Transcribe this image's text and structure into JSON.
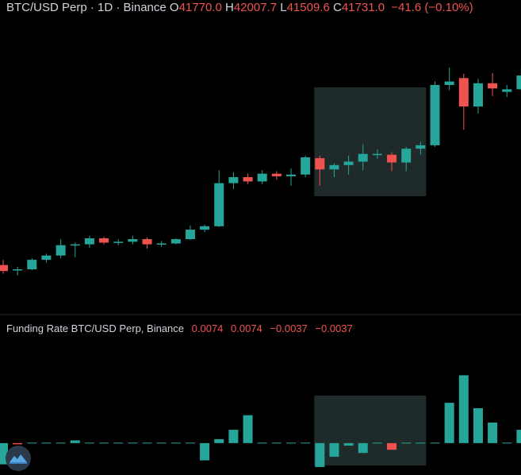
{
  "header": {
    "symbol": "BTC/USD Perp · 1D · Binance",
    "o_label": "O",
    "o_value": "41770.0",
    "h_label": "H",
    "h_value": "42007.7",
    "l_label": "L",
    "l_value": "41509.6",
    "c_label": "C",
    "c_value": "41731.0",
    "change": "−41.6 (−0.10%)"
  },
  "funding": {
    "title": "Funding Rate BTC/USD Perp, Binance",
    "values": [
      "0.0074",
      "0.0074",
      "−0.0037",
      "−0.0037"
    ]
  },
  "colors": {
    "up": "#26a69a",
    "down": "#ef5350",
    "highlight": "#1f2b2b",
    "divider": "#2a2e39"
  },
  "logo_icon": "tradingview-logo-icon",
  "chart_data": [
    {
      "type": "candlestick",
      "ylim": [
        27600,
        44200
      ],
      "highlight_range": [
        22,
        29
      ],
      "candles": [
        {
          "o": 30200,
          "h": 30500,
          "l": 29700,
          "c": 29850
        },
        {
          "o": 29900,
          "h": 30100,
          "l": 29600,
          "c": 29950
        },
        {
          "o": 29950,
          "h": 30600,
          "l": 29900,
          "c": 30500
        },
        {
          "o": 30500,
          "h": 30850,
          "l": 30350,
          "c": 30750
        },
        {
          "o": 30750,
          "h": 31700,
          "l": 30600,
          "c": 31350
        },
        {
          "o": 31350,
          "h": 31500,
          "l": 30650,
          "c": 31400
        },
        {
          "o": 31400,
          "h": 31900,
          "l": 31200,
          "c": 31750
        },
        {
          "o": 31750,
          "h": 31850,
          "l": 31400,
          "c": 31500
        },
        {
          "o": 31500,
          "h": 31700,
          "l": 31350,
          "c": 31550
        },
        {
          "o": 31550,
          "h": 31900,
          "l": 31400,
          "c": 31700
        },
        {
          "o": 31700,
          "h": 31800,
          "l": 31150,
          "c": 31400
        },
        {
          "o": 31400,
          "h": 31600,
          "l": 31250,
          "c": 31450
        },
        {
          "o": 31450,
          "h": 31750,
          "l": 31400,
          "c": 31700
        },
        {
          "o": 31700,
          "h": 32500,
          "l": 31650,
          "c": 32250
        },
        {
          "o": 32250,
          "h": 32550,
          "l": 32100,
          "c": 32450
        },
        {
          "o": 32450,
          "h": 35700,
          "l": 32400,
          "c": 34950
        },
        {
          "o": 34950,
          "h": 35600,
          "l": 34600,
          "c": 35300
        },
        {
          "o": 35300,
          "h": 35500,
          "l": 34900,
          "c": 35050
        },
        {
          "o": 35050,
          "h": 35700,
          "l": 34900,
          "c": 35500
        },
        {
          "o": 35500,
          "h": 35650,
          "l": 35150,
          "c": 35350
        },
        {
          "o": 35350,
          "h": 35800,
          "l": 34800,
          "c": 35450
        },
        {
          "o": 35450,
          "h": 36550,
          "l": 35300,
          "c": 36450
        },
        {
          "o": 36400,
          "h": 36550,
          "l": 34800,
          "c": 35750
        },
        {
          "o": 35750,
          "h": 36100,
          "l": 35300,
          "c": 36000
        },
        {
          "o": 36000,
          "h": 36550,
          "l": 35450,
          "c": 36200
        },
        {
          "o": 36200,
          "h": 37200,
          "l": 35700,
          "c": 36650
        },
        {
          "o": 36650,
          "h": 36900,
          "l": 36350,
          "c": 36650
        },
        {
          "o": 36600,
          "h": 36750,
          "l": 35650,
          "c": 36150
        },
        {
          "o": 36150,
          "h": 37050,
          "l": 35650,
          "c": 36950
        },
        {
          "o": 36950,
          "h": 37350,
          "l": 36600,
          "c": 37150
        },
        {
          "o": 37150,
          "h": 40850,
          "l": 37050,
          "c": 40650
        },
        {
          "o": 40650,
          "h": 41650,
          "l": 40350,
          "c": 40850
        },
        {
          "o": 41050,
          "h": 41300,
          "l": 38050,
          "c": 39400
        },
        {
          "o": 39400,
          "h": 41000,
          "l": 39000,
          "c": 40750
        },
        {
          "o": 40750,
          "h": 41350,
          "l": 40000,
          "c": 40450
        },
        {
          "o": 40250,
          "h": 40650,
          "l": 39950,
          "c": 40400
        },
        {
          "o": 40400,
          "h": 41600,
          "l": 40300,
          "c": 41200
        }
      ]
    },
    {
      "type": "bar",
      "series_name": "Funding Rate BTC/USD Perp, Binance",
      "ylim": [
        -0.0142,
        0.0432
      ],
      "values": [
        -0.0118,
        -0.0002,
        0,
        0,
        0,
        0.0015,
        0,
        0,
        0,
        0,
        0,
        0,
        0,
        0,
        -0.0096,
        0.0022,
        0.0074,
        0.0155,
        0,
        0,
        0,
        0,
        -0.0133,
        -0.0076,
        -0.0014,
        -0.0055,
        0,
        -0.0037,
        0,
        0,
        0,
        0.0224,
        0.0377,
        0.0194,
        0.0114,
        0,
        0.0074
      ]
    }
  ]
}
